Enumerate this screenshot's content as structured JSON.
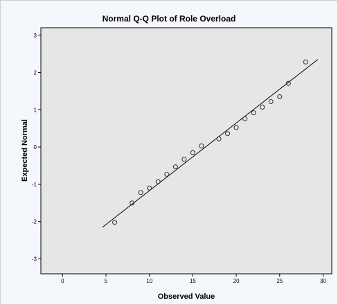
{
  "chart_data": {
    "type": "scatter",
    "title": "Normal Q-Q Plot of Role Overload",
    "xlabel": "Observed Value",
    "ylabel": "Expected Normal",
    "xlim": [
      -2.5,
      31
    ],
    "ylim": [
      -3.4,
      3.2
    ],
    "x_ticks": [
      0,
      5,
      10,
      15,
      20,
      25,
      30
    ],
    "y_ticks": [
      -3,
      -2,
      -1,
      0,
      1,
      2,
      3
    ],
    "points": [
      {
        "x": 6,
        "y": -2.02
      },
      {
        "x": 8,
        "y": -1.5
      },
      {
        "x": 9,
        "y": -1.22
      },
      {
        "x": 10,
        "y": -1.1
      },
      {
        "x": 11,
        "y": -0.93
      },
      {
        "x": 12,
        "y": -0.73
      },
      {
        "x": 13,
        "y": -0.53
      },
      {
        "x": 14,
        "y": -0.33
      },
      {
        "x": 15,
        "y": -0.15
      },
      {
        "x": 16,
        "y": 0.03
      },
      {
        "x": 18,
        "y": 0.22
      },
      {
        "x": 19,
        "y": 0.36
      },
      {
        "x": 20,
        "y": 0.52
      },
      {
        "x": 21,
        "y": 0.76
      },
      {
        "x": 22,
        "y": 0.92
      },
      {
        "x": 23,
        "y": 1.07
      },
      {
        "x": 24,
        "y": 1.22
      },
      {
        "x": 25,
        "y": 1.35
      },
      {
        "x": 26,
        "y": 1.71
      },
      {
        "x": 28,
        "y": 2.28
      }
    ],
    "reference_line": [
      {
        "x": 4.6,
        "y": -2.15
      },
      {
        "x": 29.4,
        "y": 2.35
      }
    ],
    "colors": {
      "plot_background": "#e6e6e6",
      "frame_background": "#f4f7fb",
      "marker_stroke": "#3a3a3a",
      "line": "#000000"
    }
  }
}
